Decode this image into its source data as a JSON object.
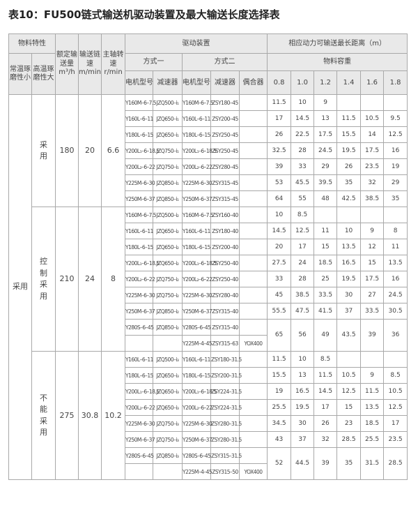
{
  "title": "表10：FU500链式输送机驱动装置及最大输送长度选择表",
  "header": {
    "material": "物料特性",
    "normal_temp": "常温琢磨性小",
    "high_temp": "高温琢磨性大",
    "capacity": "额定输送量m³/h",
    "chain_speed": "输送链速m/min",
    "shaft_speed": "主轴转速r/min",
    "drive": "驱动装置",
    "mode1": "方式一",
    "mode2": "方式二",
    "motor": "电机型号",
    "reducer": "减速器",
    "coupler": "偶合器",
    "max_length": "相应动力可输送最长距离（m）",
    "density": "物料容重",
    "densities": [
      "0.8",
      "1.0",
      "1.2",
      "1.4",
      "1.6",
      "1.8"
    ]
  },
  "normal_temp_value": "采用",
  "sections": [
    {
      "high_temp": "采用",
      "capacity": "180",
      "speed": "20",
      "rpm": "6.6",
      "rows": [
        {
          "m1": "Y160M–6–7.5",
          "r1": "JZQ500–i₁",
          "m2": "Y160M–6–7.5",
          "r2": "ZSY180–45",
          "c": "",
          "v": [
            "11.5",
            "10",
            "9",
            "",
            "",
            ""
          ]
        },
        {
          "m1": "Y160L–6–11",
          "r1": "JZQ650–i₁",
          "m2": "Y160L–6–11",
          "r2": "ZSY200–45",
          "c": "",
          "v": [
            "17",
            "14.5",
            "13",
            "11.5",
            "10.5",
            "9.5"
          ]
        },
        {
          "m1": "Y180L–6–15",
          "r1": "JZQ650–i₁",
          "m2": "Y180L–6–15",
          "r2": "ZSY250–45",
          "c": "",
          "v": [
            "26",
            "22.5",
            "17.5",
            "15.5",
            "14",
            "12.5"
          ]
        },
        {
          "m1": "Y200L₁–6–18.5",
          "r1": "JZQ750–i₁",
          "m2": "Y200L₁–6–18.5",
          "r2": "ZSY250–45",
          "c": "",
          "v": [
            "32.5",
            "28",
            "24.5",
            "19.5",
            "17.5",
            "16"
          ]
        },
        {
          "m1": "Y200L₂–6–22",
          "r1": "JZQ750–i₁",
          "m2": "Y200L₂–6–22",
          "r2": "ZSY280–45",
          "c": "",
          "v": [
            "39",
            "33",
            "29",
            "26",
            "23.5",
            "19"
          ]
        },
        {
          "m1": "Y225M–6–30",
          "r1": "JZQ850–i₁",
          "m2": "Y225M–6–30",
          "r2": "ZSY315–45",
          "c": "",
          "v": [
            "53",
            "45.5",
            "39.5",
            "35",
            "32",
            "29"
          ]
        },
        {
          "m1": "Y250M–6–37",
          "r1": "JZQ850–i₁",
          "m2": "Y250M–6–37",
          "r2": "ZSY315–45",
          "c": "",
          "v": [
            "64",
            "55",
            "48",
            "42.5",
            "38.5",
            "35"
          ]
        }
      ]
    },
    {
      "high_temp": "控制采用",
      "capacity": "210",
      "speed": "24",
      "rpm": "8",
      "rows": [
        {
          "m1": "Y160M–6–7.5",
          "r1": "JZQ500–i₂",
          "m2": "Y160M–6–7.5",
          "r2": "ZSY160–40",
          "c": "",
          "v": [
            "10",
            "8.5",
            "",
            "",
            "",
            ""
          ]
        },
        {
          "m1": "Y160L–6–11",
          "r1": "JZQ650–i₂",
          "m2": "Y160L–6–11",
          "r2": "ZSY180–40",
          "c": "",
          "v": [
            "14.5",
            "12.5",
            "11",
            "10",
            "9",
            "8"
          ]
        },
        {
          "m1": "Y180L–6–15",
          "r1": "JZQ650–i₂",
          "m2": "Y180L–6–15",
          "r2": "ZSY200–40",
          "c": "",
          "v": [
            "20",
            "17",
            "15",
            "13.5",
            "12",
            "11"
          ]
        },
        {
          "m1": "Y200L₁–6–18.5",
          "r1": "JZQ650–i₂",
          "m2": "Y200L₁–6–18.5",
          "r2": "ZSY250–40",
          "c": "",
          "v": [
            "27.5",
            "24",
            "18.5",
            "16.5",
            "15",
            "13.5"
          ]
        },
        {
          "m1": "Y200L₂–6–22",
          "r1": "JZQ750–i₂",
          "m2": "Y200L₂–6–22",
          "r2": "ZSY250–40",
          "c": "",
          "v": [
            "33",
            "28",
            "25",
            "19.5",
            "17.5",
            "16"
          ]
        },
        {
          "m1": "Y225M–6–30",
          "r1": "JZQ750–i₂",
          "m2": "Y225M–6–30",
          "r2": "ZSY280–40",
          "c": "",
          "v": [
            "45",
            "38.5",
            "33.5",
            "30",
            "27",
            "24.5"
          ]
        },
        {
          "m1": "Y250M–6–37",
          "r1": "JZQ850–i₂",
          "m2": "Y250M–6–37",
          "r2": "ZSY315–40",
          "c": "",
          "v": [
            "55.5",
            "47.5",
            "41.5",
            "37",
            "33.5",
            "30.5"
          ]
        },
        {
          "m1": "Y280S–6–45",
          "r1": "JZQ850–i₂",
          "m2": "Y280S–6–45",
          "r2": "ZSY315–40",
          "c": "",
          "v": [
            "65",
            "56",
            "49",
            "43.5",
            "39",
            "36"
          ]
        },
        {
          "m1": "",
          "r1": "",
          "m2": "Y225M–4–45",
          "r2": "ZSY315–63",
          "c": "YOX400"
        }
      ]
    },
    {
      "high_temp": "不能采用",
      "capacity": "275",
      "speed": "30.8",
      "rpm": "10.2",
      "rows": [
        {
          "m1": "Y160L–6–11",
          "r1": "JZQ500–i₃",
          "m2": "Y160L–6–11",
          "r2": "ZSY180–31.5",
          "c": "",
          "v": [
            "11.5",
            "10",
            "8.5",
            "",
            "",
            ""
          ]
        },
        {
          "m1": "Y180L–6–15",
          "r1": "JZQ650–i₃",
          "m2": "Y180L–6–15",
          "r2": "ZSY200–31.5",
          "c": "",
          "v": [
            "15.5",
            "13",
            "11.5",
            "10.5",
            "9",
            "8.5"
          ]
        },
        {
          "m1": "Y200L₁–6–18.5",
          "r1": "JZQ650–i₃",
          "m2": "Y200L₁–6–18.5",
          "r2": "ZSY224–31.5",
          "c": "",
          "v": [
            "19",
            "16.5",
            "14.5",
            "12.5",
            "11.5",
            "10.5"
          ]
        },
        {
          "m1": "Y200L₂–6–22",
          "r1": "JZQ650–i₃",
          "m2": "Y200L₂–6–22",
          "r2": "ZSY224–31.5",
          "c": "",
          "v": [
            "25.5",
            "19.5",
            "17",
            "15",
            "13.5",
            "12.5"
          ]
        },
        {
          "m1": "Y225M–6–30",
          "r1": "JZQ750–i₃",
          "m2": "Y225M–6–30",
          "r2": "ZSY280–31.5",
          "c": "",
          "v": [
            "34.5",
            "30",
            "26",
            "23",
            "18.5",
            "17"
          ]
        },
        {
          "m1": "Y250M–6–37",
          "r1": "JZQ750–i₃",
          "m2": "Y250M–6–37",
          "r2": "ZSY280–31.5",
          "c": "",
          "v": [
            "43",
            "37",
            "32",
            "28.5",
            "25.5",
            "23.5"
          ]
        },
        {
          "m1": "Y280S–6–45",
          "r1": "JZQ850–i₃",
          "m2": "Y280S–6–45",
          "r2": "ZSY315–31.5",
          "c": "",
          "v": [
            "52",
            "44.5",
            "39",
            "35",
            "31.5",
            "28.5"
          ]
        },
        {
          "m1": "",
          "r1": "",
          "m2": "Y225M–4–45",
          "r2": "ZSY315–50",
          "c": "YOX400"
        }
      ]
    }
  ]
}
